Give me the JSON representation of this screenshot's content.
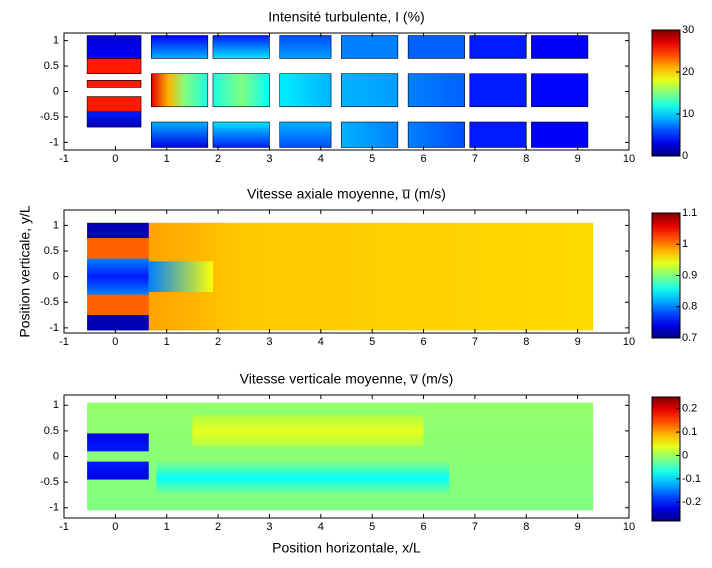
{
  "chart_data": [
    {
      "type": "heatmap",
      "title": "Intensité turbulente, I (%)",
      "colormap": "jet",
      "xlim": [
        -1,
        10
      ],
      "xticks": [
        -1,
        0,
        1,
        2,
        3,
        4,
        5,
        6,
        7,
        8,
        9,
        10
      ],
      "ylim": [
        -1.15,
        1.15
      ],
      "yticks": [
        -1,
        -0.5,
        0,
        0.5,
        1
      ],
      "clim": [
        0,
        30
      ],
      "cticks": [
        0,
        10,
        20,
        30
      ]
    },
    {
      "type": "heatmap",
      "title": "Vitesse axiale moyenne, u̅ (m/s)",
      "colormap": "jet",
      "ylabel": "Position verticale, y/L",
      "xlim": [
        -1,
        10
      ],
      "xticks": [
        -1,
        0,
        1,
        2,
        3,
        4,
        5,
        6,
        7,
        8,
        9,
        10
      ],
      "ylim": [
        -1.1,
        1.3
      ],
      "yticks": [
        -1,
        -0.5,
        0,
        0.5,
        1
      ],
      "clim": [
        0.7,
        1.1
      ],
      "cticks": [
        0.7,
        0.8,
        0.9,
        1,
        1.1
      ]
    },
    {
      "type": "heatmap",
      "title": "Vitesse verticale moyenne, v̅ (m/s)",
      "colormap": "jet",
      "xlabel": "Position horizontale, x/L",
      "xlim": [
        -1,
        10
      ],
      "xticks": [
        -1,
        0,
        1,
        2,
        3,
        4,
        5,
        6,
        7,
        8,
        9,
        10
      ],
      "ylim": [
        -1.2,
        1.2
      ],
      "yticks": [
        -1,
        -0.5,
        0,
        0.5,
        1
      ],
      "clim": [
        -0.28,
        0.25
      ],
      "cticks": [
        -0.2,
        -0.1,
        0,
        0.1,
        0.2
      ]
    }
  ]
}
